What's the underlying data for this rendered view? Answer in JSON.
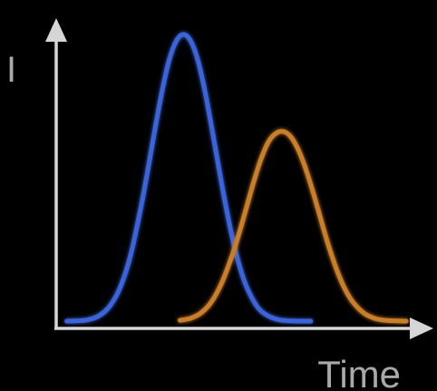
{
  "chart_data": {
    "type": "line",
    "title": "",
    "xlabel": "Time",
    "ylabel": "I",
    "xlim": [
      0,
      100
    ],
    "ylim": [
      0,
      100
    ],
    "grid": false,
    "legend": "none",
    "series": [
      {
        "color": "#3d63d8",
        "x": [
          3,
          6,
          9,
          12,
          15,
          18,
          21,
          24,
          26,
          28,
          30,
          32,
          34,
          36,
          38,
          40,
          42,
          44,
          46,
          48,
          50,
          52,
          54,
          57,
          60,
          63,
          66,
          69,
          72
        ],
        "values": [
          0,
          0.1,
          0.5,
          1.8,
          5,
          11.5,
          22.8,
          40,
          53.4,
          67.4,
          80.6,
          91.3,
          97.8,
          100,
          97.8,
          91.3,
          80.6,
          67.4,
          53.4,
          40,
          28.1,
          18.6,
          11.5,
          4.8,
          1.8,
          0.5,
          0.1,
          0,
          0
        ]
      },
      {
        "color": "#c97e2a",
        "x": [
          35,
          38,
          41,
          44,
          47,
          50,
          52,
          54,
          56,
          58,
          60,
          62,
          64,
          66,
          68,
          70,
          72,
          74,
          76,
          78,
          80,
          82,
          84,
          87,
          90,
          93,
          96,
          99
        ],
        "values": [
          0.3,
          1,
          2.9,
          6.9,
          13.9,
          23.8,
          31.8,
          40.5,
          49.2,
          56.8,
          62.5,
          65.4,
          66.2,
          64.8,
          61,
          55.1,
          47.6,
          39.2,
          30.5,
          22.6,
          15.8,
          10.4,
          6.5,
          2.8,
          1,
          0.3,
          0.1,
          0
        ]
      }
    ]
  }
}
